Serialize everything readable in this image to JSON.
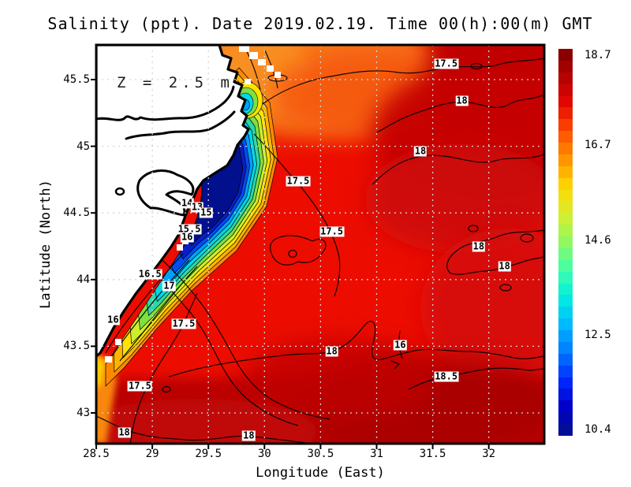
{
  "title": "Salinity (ppt). Date 2019.02.19. Time 00(h):00(m) GMT",
  "annotation": "Z = 2.5 m",
  "axes": {
    "x": {
      "label": "Longitude (East)",
      "ticks": [
        "28.5",
        "29",
        "29.5",
        "30",
        "30.5",
        "31",
        "31.5",
        "32"
      ]
    },
    "y": {
      "label": "Latitude (North)",
      "ticks": [
        "45.5",
        "45",
        "44.5",
        "44",
        "43.5",
        "43"
      ]
    }
  },
  "colorbar": {
    "tick_labels": [
      "18.7",
      "16.7",
      "14.6",
      "12.5",
      "10.4"
    ],
    "min": 10.4,
    "max": 18.7,
    "colormap": "jet",
    "stops": [
      "#02108e",
      "#0000c8",
      "#0028ff",
      "#0078ff",
      "#00b8ff",
      "#00eee0",
      "#40ffa8",
      "#90f860",
      "#d6ee30",
      "#ffd800",
      "#ff9400",
      "#ff4e00",
      "#e60600",
      "#b40202",
      "#7f0000"
    ]
  },
  "plume_colors": [
    "#ff8a00",
    "#ffb600",
    "#ffe200",
    "#cdee2c",
    "#7fe040",
    "#2cd8a8",
    "#00d8e8",
    "#00a0ff",
    "#004ef0",
    "#0a1ec8"
  ],
  "plume_core_color": "#02108e",
  "chart_data": {
    "type": "heatmap",
    "variable": "Salinity",
    "units": "ppt",
    "date": "2019.02.19",
    "time": "00(h):00(m) GMT",
    "depth_annotation": "Z = 2.5 m",
    "xlabel": "Longitude (East)",
    "ylabel": "Latitude (North)",
    "x_range": [
      28.5,
      32.5
    ],
    "y_range": [
      42.77,
      45.76
    ],
    "value_range": [
      10.4,
      18.7
    ],
    "contour_interval_ppt": 0.5,
    "colorbar_ticks": [
      18.7,
      16.7,
      14.6,
      12.5,
      10.4
    ],
    "grid_on": true,
    "description": "Filled contour map of 2.5 m salinity in the western Black Sea. Low-salinity Danube river plume (10-16 ppt, navy/cyan/green/yellow bands) hugs the northwestern coast; open sea is 17-18.5 ppt (red to dark red). White land with thick coastline at upper left.",
    "contour_labels": [
      {
        "v": "17.5",
        "lon": 31.62,
        "lat": 45.62
      },
      {
        "v": "18",
        "lon": 31.76,
        "lat": 45.34
      },
      {
        "v": "18",
        "lon": 31.39,
        "lat": 44.96
      },
      {
        "v": "17.5",
        "lon": 30.3,
        "lat": 44.74
      },
      {
        "v": "17.5",
        "lon": 30.6,
        "lat": 44.36
      },
      {
        "v": "18",
        "lon": 31.91,
        "lat": 44.25
      },
      {
        "v": "18",
        "lon": 32.14,
        "lat": 44.1
      },
      {
        "v": "16.5",
        "lon": 28.98,
        "lat": 44.04
      },
      {
        "v": "17",
        "lon": 29.15,
        "lat": 43.95
      },
      {
        "v": "16",
        "lon": 28.65,
        "lat": 43.7
      },
      {
        "v": "17.5",
        "lon": 29.28,
        "lat": 43.67
      },
      {
        "v": "16",
        "lon": 31.21,
        "lat": 43.51
      },
      {
        "v": "18",
        "lon": 30.6,
        "lat": 43.46
      },
      {
        "v": "18.5",
        "lon": 31.62,
        "lat": 43.27
      },
      {
        "v": "17.5",
        "lon": 28.89,
        "lat": 43.2
      },
      {
        "v": "18",
        "lon": 28.75,
        "lat": 42.85
      },
      {
        "v": "18",
        "lon": 29.86,
        "lat": 42.83
      },
      {
        "v": "14",
        "lon": 29.31,
        "lat": 44.57
      },
      {
        "v": "13",
        "lon": 29.4,
        "lat": 44.54
      },
      {
        "v": "15",
        "lon": 29.48,
        "lat": 44.5
      },
      {
        "v": "15.5",
        "lon": 29.33,
        "lat": 44.38
      },
      {
        "v": "16",
        "lon": 29.31,
        "lat": 44.32
      }
    ]
  }
}
